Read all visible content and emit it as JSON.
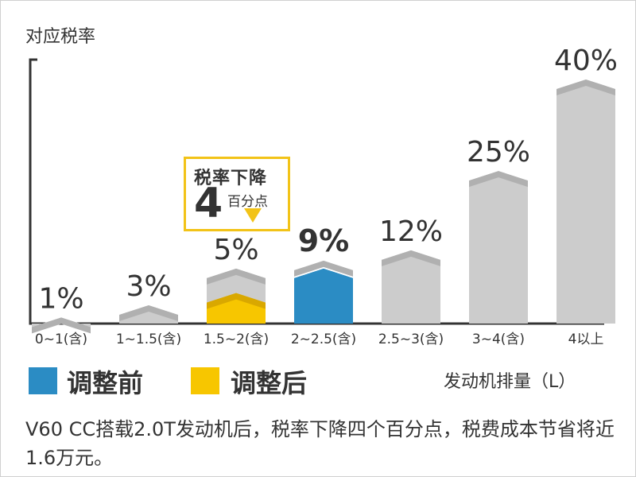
{
  "chart_data": {
    "type": "bar",
    "ylabel": "对应税率",
    "xlabel": "发动机排量（L）",
    "categories": [
      "0~1(含)",
      "1~1.5(含)",
      "1.5~2(含)",
      "2~2.5(含)",
      "2.5~3(含)",
      "3~4(含)",
      "4以上"
    ],
    "series": [
      {
        "name": "调整前",
        "values": [
          1,
          3,
          9,
          9,
          12,
          25,
          40
        ]
      },
      {
        "name": "调整后",
        "values": [
          1,
          3,
          5,
          9,
          12,
          25,
          40
        ]
      }
    ],
    "data_labels": [
      "1%",
      "3%",
      "5%",
      "9%",
      "12%",
      "25%",
      "40%"
    ],
    "ylim": [
      0,
      40
    ],
    "grid": false,
    "legend_position": "bottom-left",
    "colors": {
      "before": "#2b8cc4",
      "after": "#f7c600",
      "default": "#cccccc",
      "cap": "#b0b0b0"
    },
    "annotation": {
      "line1": "税率下降",
      "value": "4",
      "line2": "百分点"
    }
  },
  "legend": {
    "before": "调整前",
    "after": "调整后"
  },
  "caption": "V60 CC搭载2.0T发动机后，税率下降四个百分点，税费成本节省将近1.6万元。"
}
